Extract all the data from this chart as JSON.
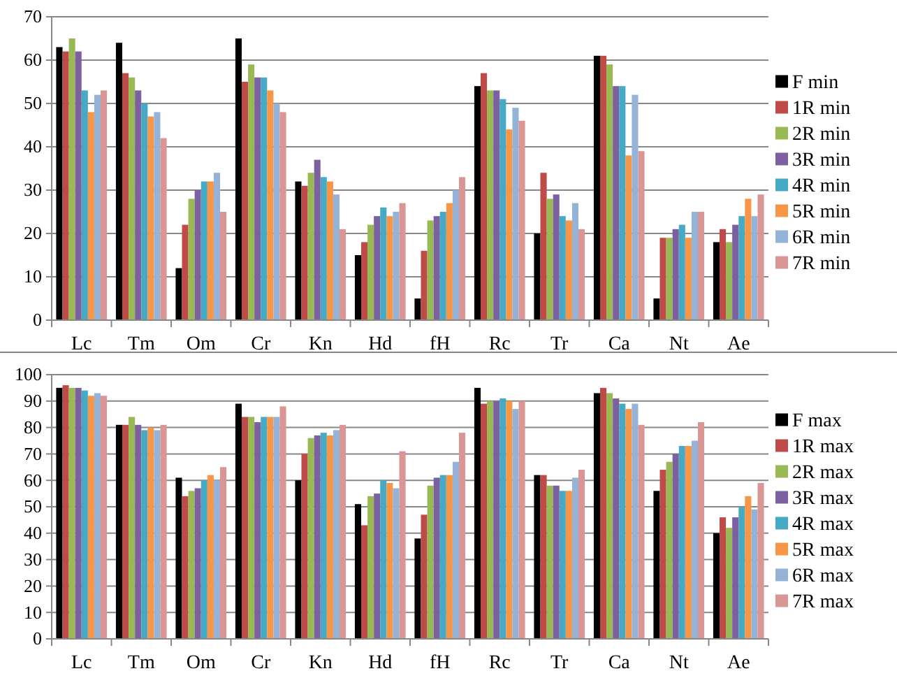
{
  "chart_data": [
    {
      "type": "bar",
      "categories": [
        "Lc",
        "Tm",
        "Om",
        "Cr",
        "Kn",
        "Hd",
        "fH",
        "Rc",
        "Tr",
        "Ca",
        "Nt",
        "Ae"
      ],
      "ylim": [
        0,
        70
      ],
      "yticks": [
        0,
        10,
        20,
        30,
        40,
        50,
        60,
        70
      ],
      "grid": "y",
      "legend": "right",
      "series": [
        {
          "name": "F min",
          "color": "#000000",
          "values": [
            63,
            64,
            12,
            65,
            32,
            15,
            5,
            54,
            20,
            61,
            5,
            18
          ]
        },
        {
          "name": "1R min",
          "color": "#be4b48",
          "values": [
            62,
            57,
            22,
            55,
            31,
            18,
            16,
            57,
            34,
            61,
            19,
            21
          ]
        },
        {
          "name": "2R min",
          "color": "#98b954",
          "values": [
            65,
            56,
            28,
            59,
            34,
            22,
            23,
            53,
            28,
            59,
            19,
            18
          ]
        },
        {
          "name": "3R min",
          "color": "#7d60a0",
          "values": [
            62,
            53,
            30,
            56,
            37,
            24,
            24,
            53,
            29,
            54,
            21,
            22
          ]
        },
        {
          "name": "4R min",
          "color": "#46aac5",
          "values": [
            53,
            50,
            32,
            56,
            33,
            26,
            25,
            51,
            24,
            54,
            22,
            24
          ]
        },
        {
          "name": "5R min",
          "color": "#f79646",
          "values": [
            48,
            47,
            32,
            53,
            32,
            24,
            27,
            44,
            23,
            38,
            19,
            28
          ]
        },
        {
          "name": "6R min",
          "color": "#95b3d7",
          "values": [
            52,
            48,
            34,
            50,
            29,
            25,
            30,
            49,
            27,
            52,
            25,
            24
          ]
        },
        {
          "name": "7R min",
          "color": "#d99694",
          "values": [
            53,
            42,
            25,
            48,
            21,
            27,
            33,
            46,
            21,
            39,
            25,
            29
          ]
        }
      ]
    },
    {
      "type": "bar",
      "categories": [
        "Lc",
        "Tm",
        "Om",
        "Cr",
        "Kn",
        "Hd",
        "fH",
        "Rc",
        "Tr",
        "Ca",
        "Nt",
        "Ae"
      ],
      "ylim": [
        0,
        100
      ],
      "yticks": [
        0,
        10,
        20,
        30,
        40,
        50,
        60,
        70,
        80,
        90,
        100
      ],
      "grid": "y",
      "legend": "right",
      "series": [
        {
          "name": "F max",
          "color": "#000000",
          "values": [
            95,
            81,
            61,
            89,
            60,
            51,
            38,
            95,
            62,
            93,
            56,
            40
          ]
        },
        {
          "name": "1R max",
          "color": "#be4b48",
          "values": [
            96,
            81,
            54,
            84,
            70,
            43,
            47,
            89,
            62,
            95,
            64,
            46
          ]
        },
        {
          "name": "2R max",
          "color": "#98b954",
          "values": [
            95,
            84,
            56,
            84,
            76,
            54,
            58,
            90,
            58,
            93,
            67,
            42
          ]
        },
        {
          "name": "3R max",
          "color": "#7d60a0",
          "values": [
            95,
            81,
            57,
            82,
            77,
            55,
            61,
            90,
            58,
            91,
            70,
            46
          ]
        },
        {
          "name": "4R max",
          "color": "#46aac5",
          "values": [
            94,
            79,
            60,
            84,
            78,
            60,
            62,
            91,
            56,
            89,
            73,
            50
          ]
        },
        {
          "name": "5R max",
          "color": "#f79646",
          "values": [
            92,
            80,
            62,
            84,
            77,
            59,
            62,
            90,
            56,
            87,
            73,
            54
          ]
        },
        {
          "name": "6R max",
          "color": "#95b3d7",
          "values": [
            93,
            79,
            60,
            84,
            79,
            57,
            67,
            87,
            61,
            89,
            75,
            49
          ]
        },
        {
          "name": "7R max",
          "color": "#d99694",
          "values": [
            92,
            81,
            65,
            88,
            81,
            71,
            78,
            90,
            64,
            81,
            82,
            59
          ]
        }
      ]
    }
  ]
}
